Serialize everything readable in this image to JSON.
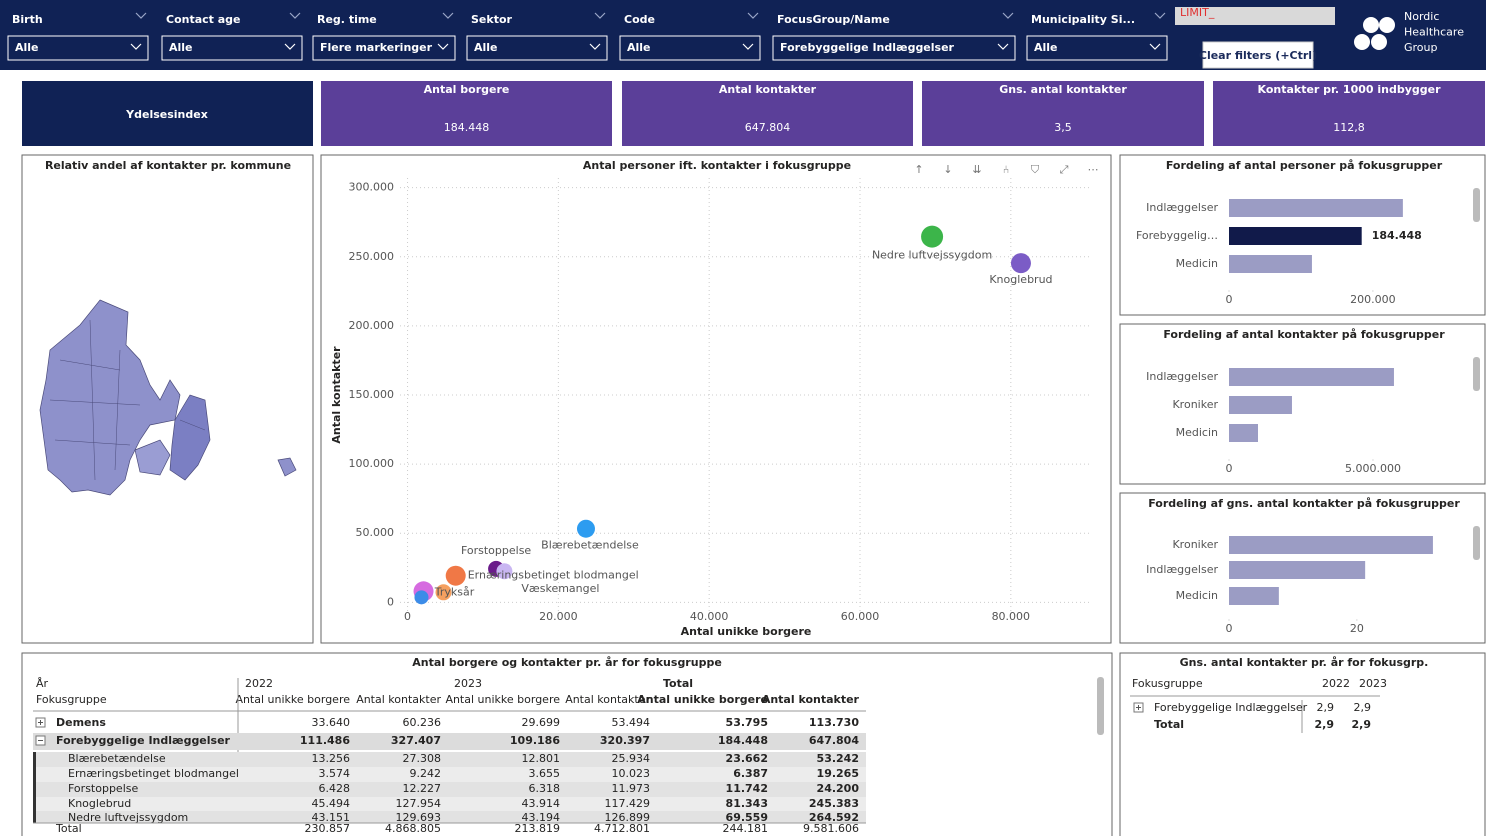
{
  "filters": [
    {
      "label": "Birth",
      "value": "Alle"
    },
    {
      "label": "Contact age",
      "value": "Alle"
    },
    {
      "label": "Reg. time",
      "value": "Flere markeringer"
    },
    {
      "label": "Sektor",
      "value": "Alle"
    },
    {
      "label": "Code",
      "value": "Alle"
    },
    {
      "label": "FocusGroup/Name",
      "value": "Forebyggelige Indlæggelser"
    },
    {
      "label": "Municipality Si...",
      "value": "Alle"
    }
  ],
  "limit_label": "LIMIT_",
  "clear_button": "Clear filters (+Ctrl)",
  "logo": [
    "Nordic",
    "Healthcare",
    "Group"
  ],
  "index_title": "Ydelsesindex",
  "kpis": [
    {
      "label": "Antal borgere",
      "value": "184.448"
    },
    {
      "label": "Antal kontakter",
      "value": "647.804"
    },
    {
      "label": "Gns. antal kontakter",
      "value": "3,5"
    },
    {
      "label": "Kontakter pr. 1000 indbygger",
      "value": "112,8"
    }
  ],
  "map": {
    "title": "Relativ andel af kontakter pr. kommune"
  },
  "chart_data": [
    {
      "type": "scatter",
      "title": "Antal personer ift. kontakter i fokusgruppe",
      "xlabel": "Antal unikke borgere",
      "ylabel": "Antal kontakter",
      "labels": [
        "Nedre luftvejssygdom",
        "Knoglebrud",
        "Blærebetændelse",
        "Forstoppelse",
        "Ernæringsbetinget blodmangel",
        "Væskemangel",
        "Tryksår",
        null,
        null
      ],
      "x": [
        69559,
        81343,
        23662,
        11742,
        6387,
        12850,
        4770,
        2120,
        1850
      ],
      "values": [
        264592,
        245383,
        53242,
        24200,
        19265,
        22500,
        7250,
        7970,
        3620
      ],
      "colors": [
        "#3cb54a",
        "#7b5cc6",
        "#2d9cf0",
        "#6a1b8a",
        "#f07846",
        "#c9b6f2",
        "#f5a060",
        "#d66be0",
        "#3c8ce8"
      ],
      "xlim": [
        -1000,
        90500
      ],
      "ylim": [
        -7000,
        307000
      ],
      "xticks": [
        0,
        {
          "value": 20000,
          "label": "20.000"
        },
        {
          "value": 40000,
          "label": "40.000"
        },
        {
          "value": 60000,
          "label": "60.000"
        },
        {
          "value": 80000,
          "label": "80.000"
        }
      ],
      "yticks": [
        0,
        {
          "value": 50000,
          "label": "50.000"
        },
        {
          "value": 100000,
          "label": "100.000"
        },
        {
          "value": 150000,
          "label": "150.000"
        },
        {
          "value": 200000,
          "label": "200.000"
        },
        {
          "value": 250000,
          "label": "250.000"
        },
        {
          "value": 300000,
          "label": "300.000"
        }
      ],
      "grid": true
    },
    {
      "type": "bar",
      "orientation": "horizontal",
      "title": "Fordeling af antal personer på fokusgrupper",
      "categories": [
        "Indlæggelser",
        "Forebyggelig…",
        "Medicin"
      ],
      "values": [
        241700,
        184448,
        115300
      ],
      "value_labels": [
        null,
        "184.448",
        null
      ],
      "colors": [
        "#9b9cc4",
        "#111a4a",
        "#9b9cc4"
      ],
      "xlim": [
        0,
        335000
      ],
      "xticks": [
        0,
        {
          "value": 200000,
          "label": "200.000"
        }
      ]
    },
    {
      "type": "bar",
      "orientation": "horizontal",
      "title": "Fordeling af antal kontakter på fokusgrupper",
      "categories": [
        "Indlæggelser",
        "Kroniker",
        "Medicin"
      ],
      "values": [
        5729000,
        2187000,
        1007000
      ],
      "colors": [
        "#9b9cc4",
        "#9b9cc4",
        "#9b9cc4"
      ],
      "xlim": [
        0,
        8370000
      ],
      "xticks": [
        0,
        {
          "value": 5000000,
          "label": "5.000.000"
        }
      ]
    },
    {
      "type": "bar",
      "orientation": "horizontal",
      "title": "Fordeling af gns. antal kontakter på fokusgrupper",
      "categories": [
        "Kroniker",
        "Indlæggelser",
        "Medicin"
      ],
      "values": [
        31.9,
        21.3,
        7.8
      ],
      "colors": [
        "#9b9cc4",
        "#9b9cc4",
        "#9b9cc4"
      ],
      "xlim": [
        0,
        37.7
      ],
      "xticks": [
        0,
        20
      ]
    }
  ],
  "table": {
    "title": "Antal borgere og kontakter pr. år for fokusgruppe",
    "header_left": [
      "År",
      "Fokusgruppe"
    ],
    "years": [
      "2022",
      "2023",
      "Total"
    ],
    "measures": [
      "Antal unikke borgere",
      "Antal kontakter",
      "Antal unikke borgere",
      "Antal kontakter",
      "Antal unikke borgere",
      "Antal kontakter"
    ],
    "rows": [
      [
        "Demens",
        "33.640",
        "60.236",
        "29.699",
        "53.494",
        "53.795",
        "113.730"
      ],
      [
        "Forebyggelige Indlæggelser",
        "111.486",
        "327.407",
        "109.186",
        "320.397",
        "184.448",
        "647.804"
      ],
      [
        "Blærebetændelse",
        "13.256",
        "27.308",
        "12.801",
        "25.934",
        "23.662",
        "53.242"
      ],
      [
        "Ernæringsbetinget blodmangel",
        "3.574",
        "9.242",
        "3.655",
        "10.023",
        "6.387",
        "19.265"
      ],
      [
        "Forstoppelse",
        "6.428",
        "12.227",
        "6.318",
        "11.973",
        "11.742",
        "24.200"
      ],
      [
        "Knoglebrud",
        "45.494",
        "127.954",
        "43.914",
        "117.429",
        "81.343",
        "245.383"
      ],
      [
        "Nedre luftvejssygdom",
        "43.151",
        "129.693",
        "43.194",
        "126.899",
        "69.559",
        "264.592"
      ]
    ],
    "total": [
      "Total",
      "230.857",
      "4.868.805",
      "213.819",
      "4.712.801",
      "244.181",
      "9.581.606"
    ]
  },
  "avg_table": {
    "title": "Gns. antal kontakter pr. år for fokusgrp.",
    "headers": [
      "Fokusgruppe",
      "2022",
      "2023"
    ],
    "rows": [
      [
        "Forebyggelige Indlæggelser",
        "2,9",
        "2,9"
      ],
      [
        "Total",
        "2,9",
        "2,9"
      ]
    ]
  }
}
